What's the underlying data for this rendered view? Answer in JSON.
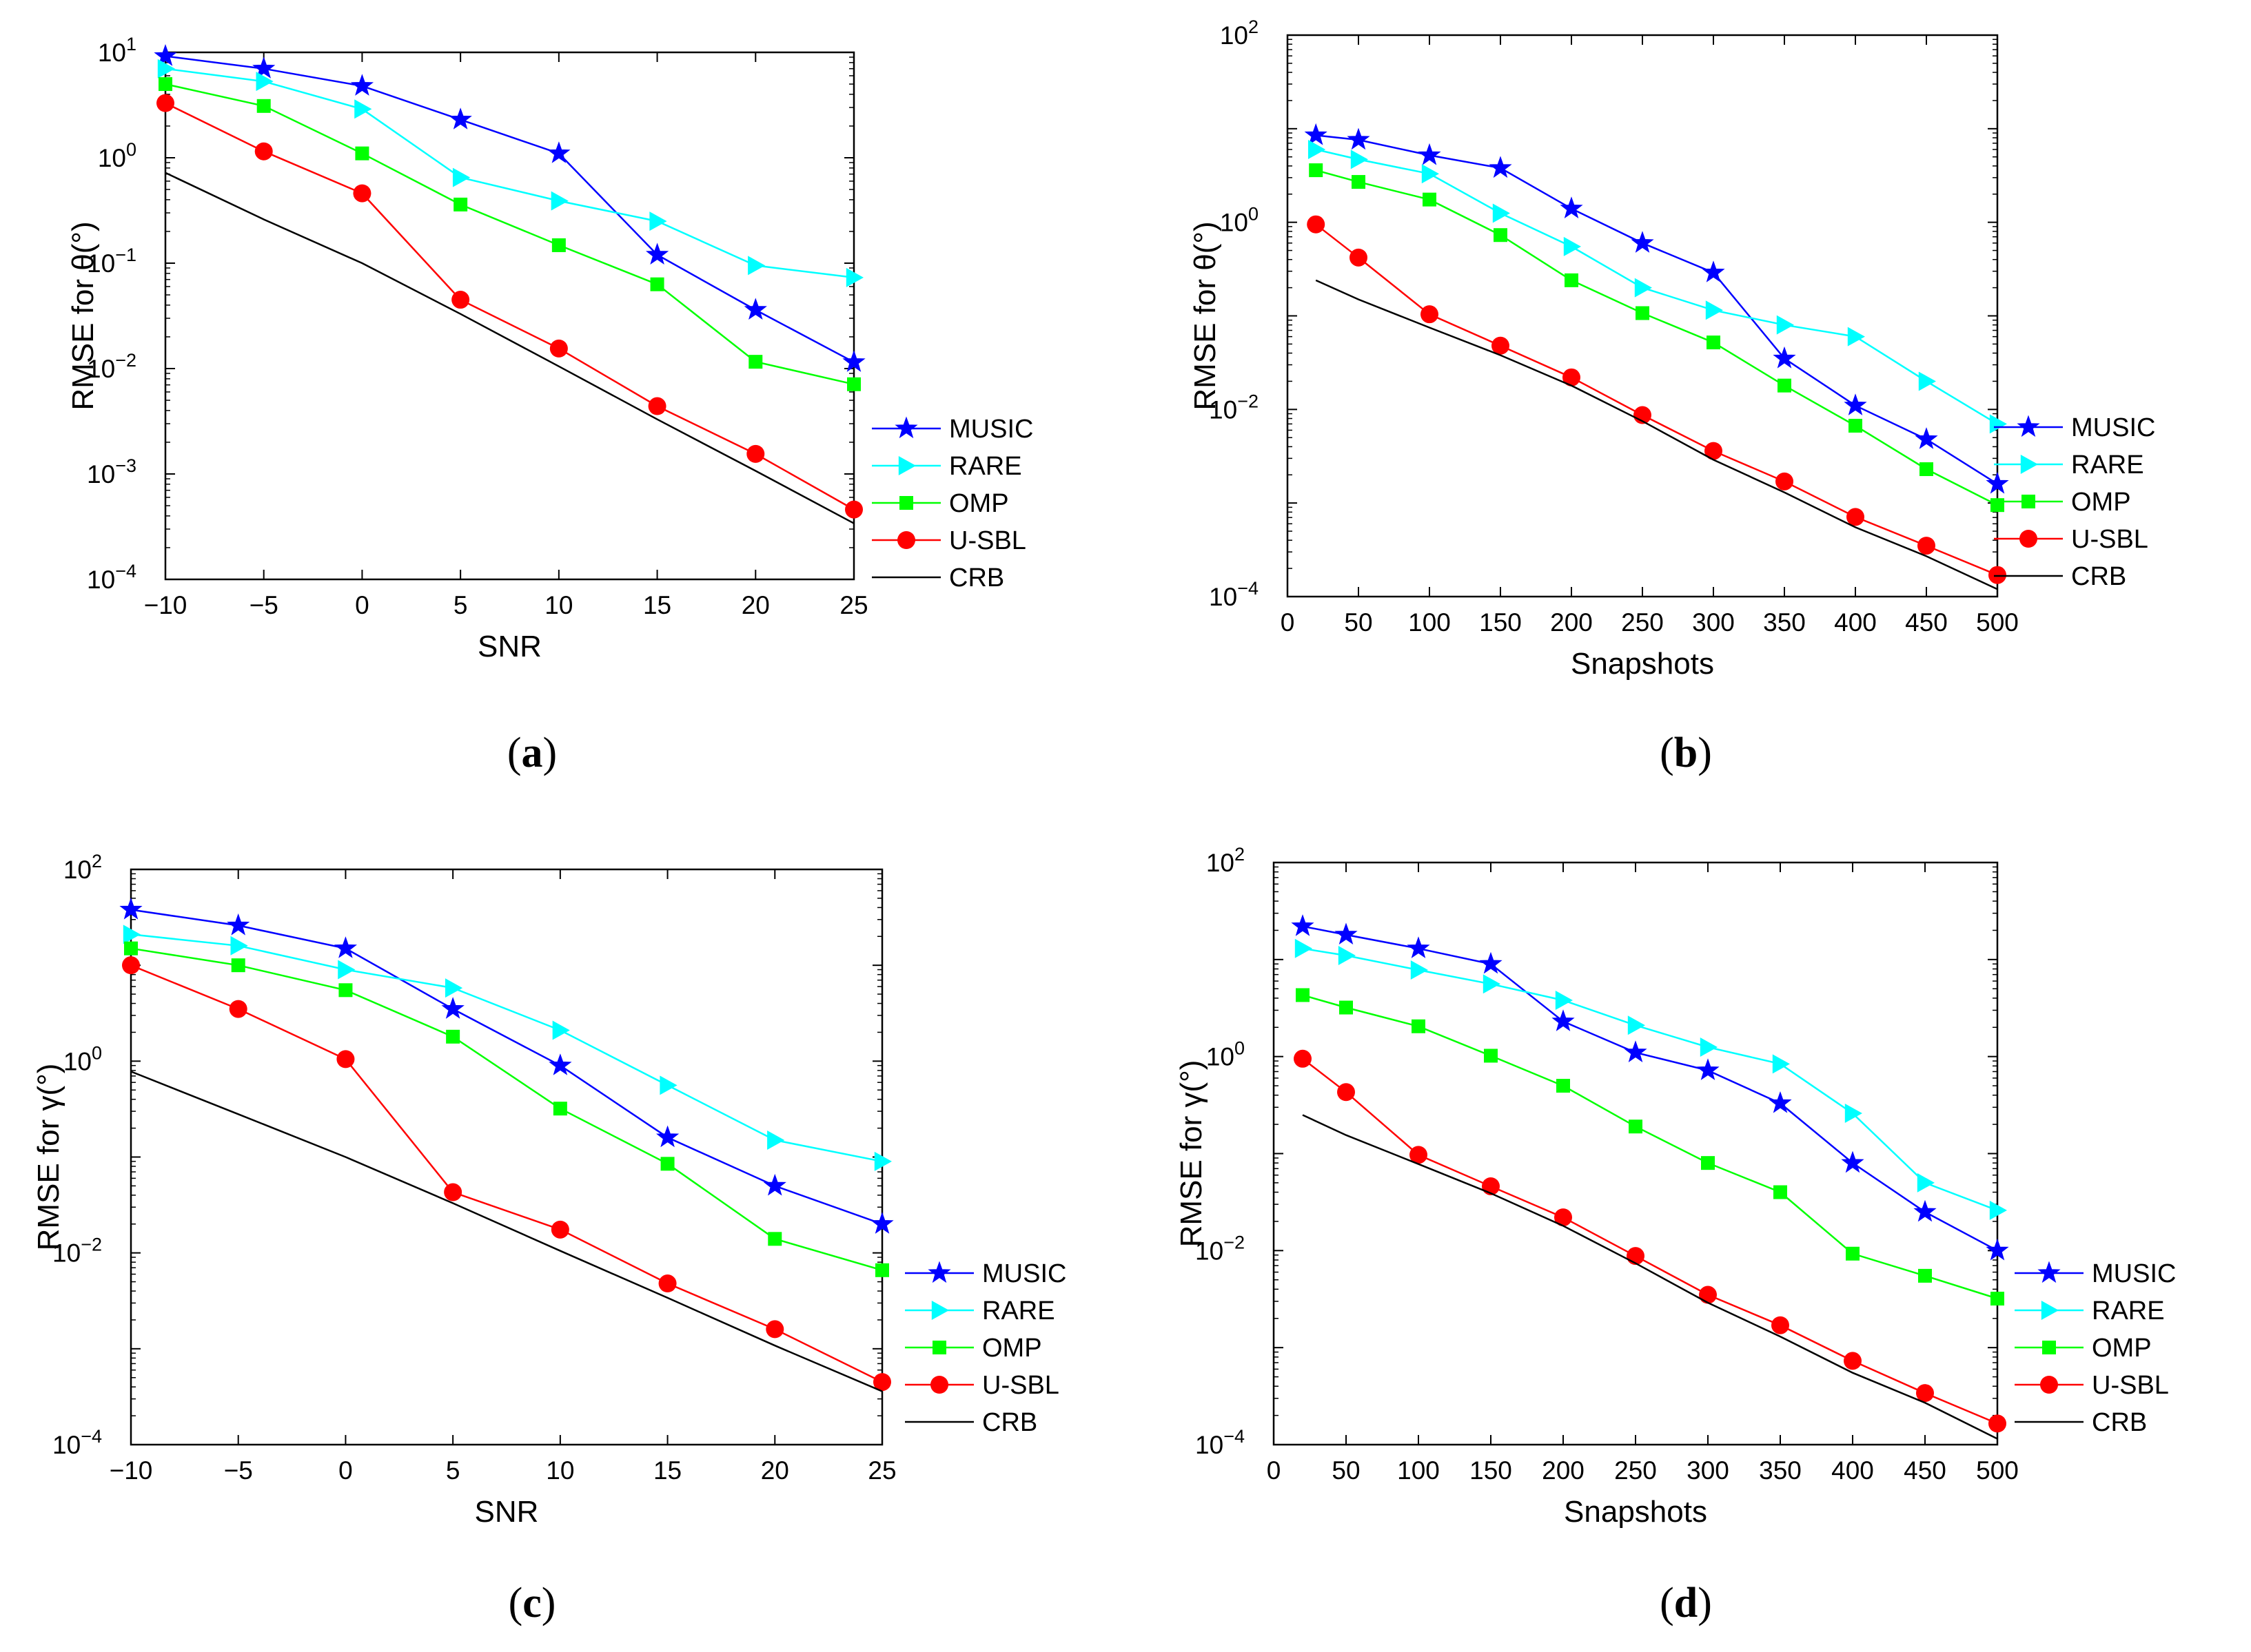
{
  "colors": {
    "MUSIC": "#0000ff",
    "RARE": "#00ffff",
    "OMP": "#00ff00",
    "U-SBL": "#ff0000",
    "CRB": "#000000"
  },
  "chart_data": [
    {
      "id": "a",
      "type": "line",
      "caption_open": "(",
      "caption_letter": "a",
      "caption_close": ")",
      "xlabel": "SNR",
      "ylabel": "RMSE for θ(°)",
      "yscale": "log",
      "xlim": [
        -10,
        25
      ],
      "ylim": [
        0.0001,
        10
      ],
      "xticks": [
        -10,
        -5,
        0,
        5,
        10,
        15,
        20,
        25
      ],
      "xtick_labels": [
        "−10",
        "−5",
        "0",
        "5",
        "10",
        "15",
        "20",
        "25"
      ],
      "ytick_exponents": [
        -4,
        -3,
        -2,
        -1,
        0,
        1
      ],
      "legend_location": "lower-right, outside plot area",
      "x": [
        -10,
        -5,
        0,
        5,
        10,
        15,
        20,
        25
      ],
      "series": [
        {
          "name": "MUSIC",
          "marker": "star",
          "values": [
            9.2,
            7.0,
            4.8,
            2.3,
            1.1,
            0.12,
            0.036,
            0.0115
          ]
        },
        {
          "name": "RARE",
          "marker": "triangle-right",
          "values": [
            7.0,
            5.3,
            2.9,
            0.65,
            0.39,
            0.25,
            0.095,
            0.073
          ]
        },
        {
          "name": "OMP",
          "marker": "square",
          "values": [
            5.0,
            3.1,
            1.1,
            0.36,
            0.148,
            0.063,
            0.0116,
            0.0071
          ]
        },
        {
          "name": "U-SBL",
          "marker": "circle",
          "values": [
            3.3,
            1.15,
            0.46,
            0.045,
            0.0155,
            0.0044,
            0.00155,
            0.00046
          ]
        },
        {
          "name": "CRB",
          "marker": "none",
          "values": [
            0.72,
            0.26,
            0.1,
            0.033,
            0.0105,
            0.0033,
            0.00107,
            0.00034
          ]
        }
      ]
    },
    {
      "id": "b",
      "type": "line",
      "caption_open": "(",
      "caption_letter": "b",
      "caption_close": ")",
      "xlabel": "Snapshots",
      "ylabel": "RMSE for θ(°)",
      "yscale": "log",
      "xlim": [
        0,
        500
      ],
      "ylim": [
        0.0001,
        100
      ],
      "xticks": [
        0,
        50,
        100,
        150,
        200,
        250,
        300,
        350,
        400,
        450,
        500
      ],
      "xtick_labels": [
        "0",
        "50",
        "100",
        "150",
        "200",
        "250",
        "300",
        "350",
        "400",
        "450",
        "500"
      ],
      "ytick_exponents": [
        -4,
        -2,
        0,
        2
      ],
      "legend_location": "lower-right, outside plot area",
      "x": [
        20,
        50,
        100,
        150,
        200,
        250,
        300,
        350,
        400,
        450,
        500
      ],
      "series": [
        {
          "name": "MUSIC",
          "marker": "star",
          "values": [
            8.5,
            7.6,
            5.2,
            3.8,
            1.4,
            0.6,
            0.29,
            0.035,
            0.011,
            0.0048,
            0.0016
          ]
        },
        {
          "name": "RARE",
          "marker": "triangle-right",
          "values": [
            6.0,
            4.7,
            3.3,
            1.25,
            0.55,
            0.2,
            0.115,
            0.08,
            0.06,
            0.02,
            0.007
          ]
        },
        {
          "name": "OMP",
          "marker": "square",
          "values": [
            3.6,
            2.7,
            1.75,
            0.73,
            0.24,
            0.107,
            0.052,
            0.018,
            0.0067,
            0.0023,
            0.00095
          ]
        },
        {
          "name": "U-SBL",
          "marker": "circle",
          "values": [
            0.95,
            0.42,
            0.104,
            0.048,
            0.022,
            0.0087,
            0.0036,
            0.0017,
            0.00071,
            0.00035,
            0.00017
          ]
        },
        {
          "name": "CRB",
          "marker": "none",
          "values": [
            0.24,
            0.15,
            0.075,
            0.038,
            0.018,
            0.0075,
            0.0029,
            0.0013,
            0.00055,
            0.00027,
            0.00012
          ]
        }
      ]
    },
    {
      "id": "c",
      "type": "line",
      "caption_open": "(",
      "caption_letter": "c",
      "caption_close": ")",
      "xlabel": "SNR",
      "ylabel": "RMSE for γ(°)",
      "yscale": "log",
      "xlim": [
        -10,
        25
      ],
      "ylim": [
        0.0001,
        100
      ],
      "xticks": [
        -10,
        -5,
        0,
        5,
        10,
        15,
        20,
        25
      ],
      "xtick_labels": [
        "−10",
        "−5",
        "0",
        "5",
        "10",
        "15",
        "20",
        "25"
      ],
      "ytick_exponents": [
        -4,
        -2,
        0,
        2
      ],
      "legend_location": "lower-right, outside plot area",
      "x": [
        -10,
        -5,
        0,
        5,
        10,
        15,
        20,
        25
      ],
      "series": [
        {
          "name": "MUSIC",
          "marker": "star",
          "values": [
            38,
            26,
            15,
            3.5,
            0.9,
            0.16,
            0.05,
            0.02
          ]
        },
        {
          "name": "RARE",
          "marker": "triangle-right",
          "values": [
            21,
            16,
            9,
            5.8,
            2.1,
            0.56,
            0.15,
            0.09
          ]
        },
        {
          "name": "OMP",
          "marker": "square",
          "values": [
            15,
            10,
            5.5,
            1.8,
            0.32,
            0.085,
            0.014,
            0.0066
          ]
        },
        {
          "name": "U-SBL",
          "marker": "circle",
          "values": [
            10,
            3.5,
            1.05,
            0.043,
            0.0175,
            0.0048,
            0.0016,
            0.00045
          ]
        },
        {
          "name": "CRB",
          "marker": "none",
          "values": [
            0.78,
            0.28,
            0.1,
            0.033,
            0.0105,
            0.0034,
            0.00108,
            0.00036
          ]
        }
      ]
    },
    {
      "id": "d",
      "type": "line",
      "caption_open": "(",
      "caption_letter": "d",
      "caption_close": ")",
      "xlabel": "Snapshots",
      "ylabel": "RMSE for γ(°)",
      "yscale": "log",
      "xlim": [
        0,
        500
      ],
      "ylim": [
        0.0001,
        100
      ],
      "xticks": [
        0,
        50,
        100,
        150,
        200,
        250,
        300,
        350,
        400,
        450,
        500
      ],
      "xtick_labels": [
        "0",
        "50",
        "100",
        "150",
        "200",
        "250",
        "300",
        "350",
        "400",
        "450",
        "500"
      ],
      "ytick_exponents": [
        -4,
        -2,
        0,
        2
      ],
      "legend_location": "lower-right, outside plot area",
      "x": [
        20,
        50,
        100,
        150,
        200,
        250,
        300,
        350,
        400,
        450,
        500
      ],
      "series": [
        {
          "name": "MUSIC",
          "marker": "star",
          "values": [
            22,
            18,
            13,
            9,
            2.3,
            1.1,
            0.72,
            0.33,
            0.08,
            0.025,
            0.01
          ]
        },
        {
          "name": "RARE",
          "marker": "triangle-right",
          "values": [
            13,
            11,
            7.8,
            5.6,
            3.8,
            2.1,
            1.25,
            0.84,
            0.26,
            0.05,
            0.026
          ]
        },
        {
          "name": "OMP",
          "marker": "square",
          "values": [
            4.3,
            3.2,
            2.05,
            1.02,
            0.5,
            0.19,
            0.08,
            0.04,
            0.0093,
            0.0055,
            0.0032
          ]
        },
        {
          "name": "U-SBL",
          "marker": "circle",
          "values": [
            0.95,
            0.43,
            0.097,
            0.046,
            0.022,
            0.0088,
            0.0035,
            0.0017,
            0.00073,
            0.00034,
            0.000165
          ]
        },
        {
          "name": "CRB",
          "marker": "none",
          "values": [
            0.25,
            0.155,
            0.078,
            0.039,
            0.018,
            0.0074,
            0.0029,
            0.0013,
            0.00055,
            0.00027,
            0.000115
          ]
        }
      ]
    }
  ]
}
